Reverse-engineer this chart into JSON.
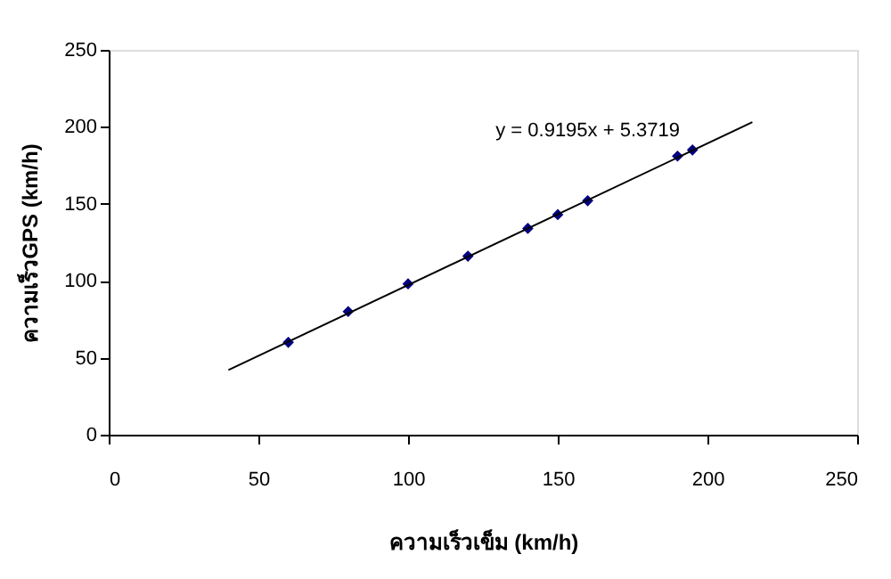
{
  "chart_data": {
    "type": "scatter",
    "xlabel": "ความเร็วเข็ม (km/h)",
    "ylabel": "ความเร็วGPS (km/h)",
    "annotations": [
      "y = 0.9195x + 5.3719"
    ],
    "xlim": [
      0,
      250
    ],
    "xticks": [
      0,
      50,
      100,
      150,
      200,
      250
    ],
    "ylim": [
      0,
      250
    ],
    "yticks": [
      0,
      50,
      100,
      150,
      200,
      250
    ],
    "grid": false,
    "marker": "diamond",
    "series": [
      {
        "color": "#000080",
        "x": [
          60,
          80,
          100,
          120,
          140,
          150,
          160,
          190,
          195
        ],
        "values": [
          60,
          80,
          98,
          116,
          134,
          143,
          152,
          181,
          185
        ]
      },
      {
        "type": "line",
        "color": "#000000",
        "x": [
          40,
          215
        ],
        "values": [
          42,
          203
        ],
        "marker": "none",
        "line_style": "solid"
      }
    ]
  }
}
